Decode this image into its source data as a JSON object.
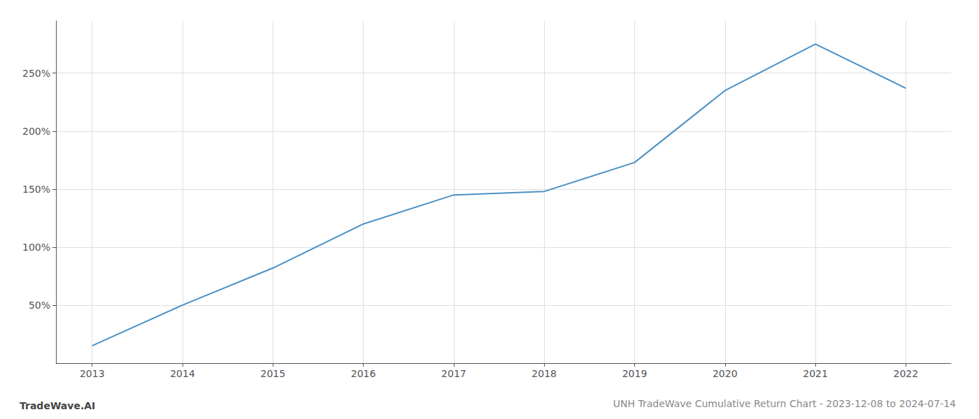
{
  "chart_data": {
    "type": "line",
    "title": "UNH TradeWave Cumulative Return Chart - 2023-12-08 to 2024-07-14",
    "annotations": [
      "TradeWave.AI"
    ],
    "x": [
      2013,
      2014,
      2015,
      2016,
      2017,
      2018,
      2019,
      2020,
      2021,
      2022
    ],
    "values": [
      15,
      50,
      82,
      120,
      145,
      148,
      173,
      235,
      275,
      237
    ],
    "color": "#4a90c4",
    "xlim": [
      2012.6,
      2022.5
    ],
    "xticks": [
      2013,
      2014,
      2015,
      2016,
      2017,
      2018,
      2019,
      2020,
      2021,
      2022
    ],
    "ylim": [
      0,
      295
    ],
    "yticks": [
      {
        "value": 50,
        "label": "50%"
      },
      {
        "value": 100,
        "label": "100%"
      },
      {
        "value": 150,
        "label": "150%"
      },
      {
        "value": 200,
        "label": "200%"
      },
      {
        "value": 250,
        "label": "250%"
      }
    ],
    "grid": true
  }
}
